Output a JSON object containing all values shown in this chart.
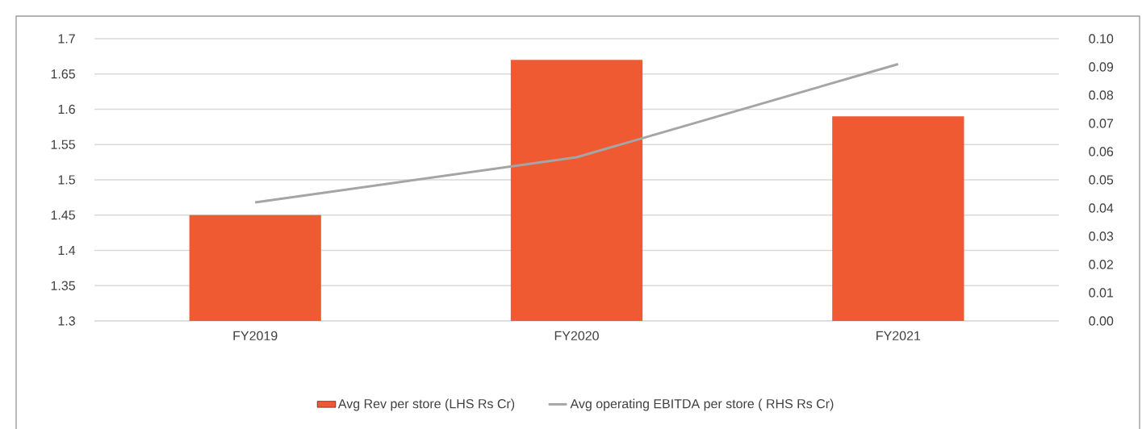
{
  "chart_data": {
    "type": "bar",
    "categories": [
      "FY2019",
      "FY2020",
      "FY2021"
    ],
    "series": [
      {
        "name": "Avg Rev per store (LHS Rs Cr)",
        "color": "#f05a32",
        "values": [
          1.45,
          1.67,
          1.59
        ]
      },
      {
        "name": "Avg operating EBITDA per store ( RHS Rs Cr)",
        "type": "line",
        "axis": "y2",
        "color": "#a5a5a5",
        "values": [
          0.042,
          0.058,
          0.091
        ]
      }
    ],
    "ylim": [
      1.3,
      1.7
    ],
    "yticks": [
      1.3,
      1.35,
      1.4,
      1.45,
      1.5,
      1.55,
      1.6,
      1.65,
      1.7
    ],
    "y2lim": [
      0,
      0.1
    ],
    "y2ticks": [
      {
        "value": 0,
        "label": "0.00"
      },
      {
        "value": 0.01,
        "label": "0.01"
      },
      {
        "value": 0.02,
        "label": "0.02"
      },
      {
        "value": 0.03,
        "label": "0.03"
      },
      {
        "value": 0.04,
        "label": "0.04"
      },
      {
        "value": 0.05,
        "label": "0.05"
      },
      {
        "value": 0.06,
        "label": "0.06"
      },
      {
        "value": 0.07,
        "label": "0.07"
      },
      {
        "value": 0.08,
        "label": "0.08"
      },
      {
        "value": 0.09,
        "label": "0.09"
      },
      {
        "value": 0.1,
        "label": "0.10"
      }
    ],
    "grid": "y",
    "legend": "bottom",
    "marker": "none",
    "line_style": "solid"
  }
}
